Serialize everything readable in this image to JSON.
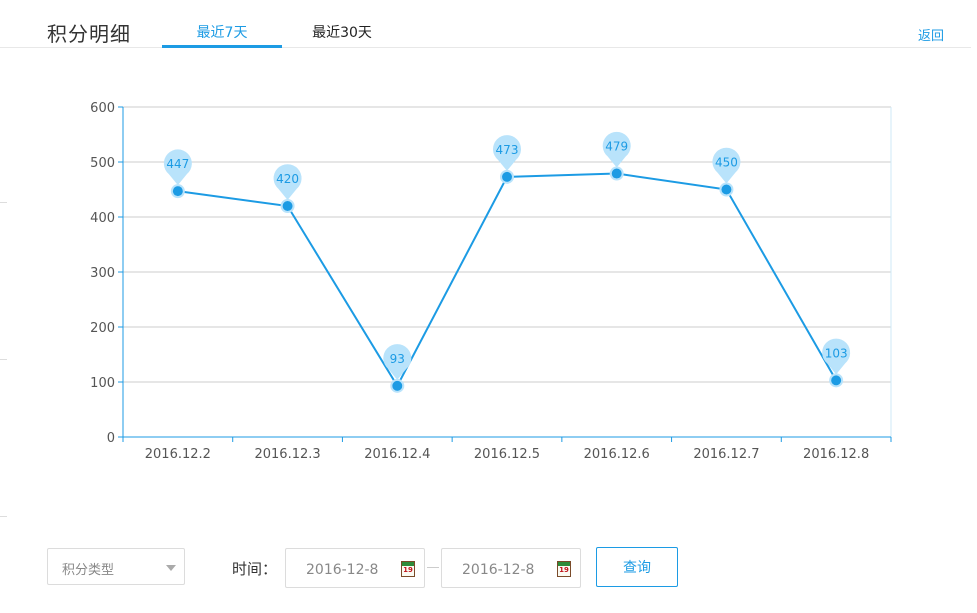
{
  "header": {
    "title": "积分明细",
    "tabs": [
      {
        "label": "最近7天",
        "active": true
      },
      {
        "label": "最近30天",
        "active": false
      }
    ],
    "back_label": "返回"
  },
  "colors": {
    "accent": "#1c9be4",
    "pin": "#b9e3fb",
    "grid": "#cccccc"
  },
  "chart_data": {
    "type": "line",
    "categories": [
      "2016.12.2",
      "2016.12.3",
      "2016.12.4",
      "2016.12.5",
      "2016.12.6",
      "2016.12.7",
      "2016.12.8"
    ],
    "values": [
      447,
      420,
      93,
      473,
      479,
      450,
      103
    ],
    "data_labels": [
      "447",
      "420",
      "93",
      "473",
      "479",
      "450",
      "103"
    ],
    "ylim": [
      0,
      600
    ],
    "yticks": [
      0,
      100,
      200,
      300,
      400,
      500,
      600
    ],
    "grid": true,
    "title": "",
    "xlabel": "",
    "ylabel": ""
  },
  "filters": {
    "type_select": {
      "value": "积分类型"
    },
    "time_label": "时间：",
    "start_date": "2016-12-8",
    "end_date": "2016-12-8",
    "calendar_day": "19",
    "query_label": "查询"
  }
}
